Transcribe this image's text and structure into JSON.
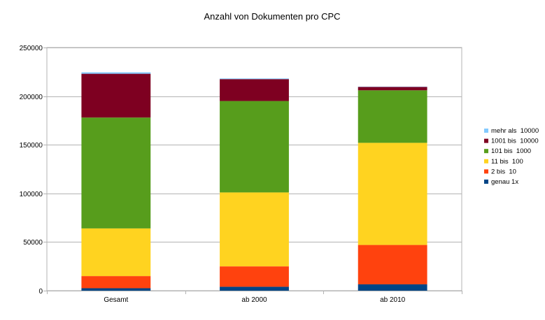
{
  "chart_data": {
    "type": "bar",
    "stacked": true,
    "title": "Anzahl von Dokumenten pro CPC",
    "xlabel": "",
    "ylabel": "",
    "categories": [
      "Gesamt",
      "ab 2000",
      "ab 2010"
    ],
    "ylim": [
      0,
      250000
    ],
    "yticks": [
      0,
      50000,
      100000,
      150000,
      200000,
      250000
    ],
    "ytick_labels": [
      "0",
      "50000",
      "100000",
      "150000",
      "200000",
      "250000"
    ],
    "grid": true,
    "legend_position": "right",
    "series": [
      {
        "name": "genau 1x",
        "color": "#004586",
        "values": [
          2500,
          4000,
          6500
        ]
      },
      {
        "name": "2 bis  10",
        "color": "#ff420e",
        "values": [
          12500,
          21000,
          40500
        ]
      },
      {
        "name": "11 bis  100",
        "color": "#ffd320",
        "values": [
          49000,
          76000,
          105000
        ]
      },
      {
        "name": "101 bis  1000",
        "color": "#579d1c",
        "values": [
          114000,
          94000,
          54000
        ]
      },
      {
        "name": "1001 bis  10000",
        "color": "#7e0021",
        "values": [
          45000,
          22500,
          3500
        ]
      },
      {
        "name": "mehr als  10000",
        "color": "#83caff",
        "values": [
          1500,
          700,
          300
        ]
      }
    ]
  }
}
